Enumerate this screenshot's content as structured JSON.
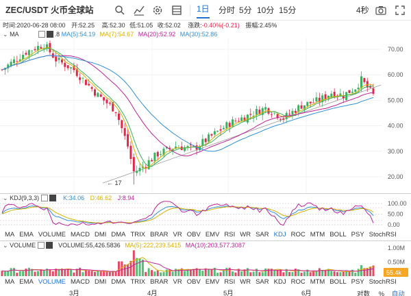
{
  "toolbar": {
    "pair": "ZEC/USDT 火币全球站",
    "intervals": [
      "1日",
      "分时",
      "5分",
      "10分",
      "15分"
    ],
    "refresh": "4秒",
    "icons": [
      "search-icon",
      "indicator-icon",
      "gear-icon",
      "layout-icon",
      "camera-icon",
      "fullscreen-icon"
    ]
  },
  "info": {
    "time_label": "时间:2020-06-28 08:00",
    "open": "开:52.25",
    "high": "高:52.30",
    "low": "低:51.05",
    "close": "收:52.02",
    "change_label": "涨跌:",
    "change": "-0.40%(-0.21)",
    "amplitude": "振幅:2.45%"
  },
  "ma_legend": {
    "name": "MA",
    "ma5_tail": ".8",
    "ma5": "MA(5):54.19",
    "ma7": "MA(7):54.67",
    "ma20": "MA(20):52.92",
    "ma30": "MA(30):52.86"
  },
  "main_axis": [
    "70.00",
    "60.00",
    "50.00",
    "40.00",
    "30.00",
    "20.00"
  ],
  "low_marker": "← 17",
  "kdj_legend": {
    "name": "KDJ(9,3,3)",
    "k": "K:34.06",
    "d": "D:46.62",
    "j": "J:8.94"
  },
  "kdj_axis": [
    "100.00",
    "50.00",
    "0.00"
  ],
  "indicators_row": [
    "MA",
    "EMA",
    "VOLUME",
    "MACD",
    "DMI",
    "DMA",
    "TRIX",
    "BRAR",
    "VR",
    "OBV",
    "EMV",
    "RSI",
    "WR",
    "SAR",
    "KDJ",
    "ROC",
    "MTM",
    "BOLL",
    "PSY",
    "StochRSI"
  ],
  "indicators_row_active_1": "KDJ",
  "indicators_row_active_2": "VOLUME",
  "vol_legend": {
    "name": "VOLUME",
    "vol": "VOLUME:55,426.5836",
    "ma5": "MA(5):222,239.5415",
    "ma10": "MA(10):203,577.3087"
  },
  "vol_axis": [
    "1.00M",
    "0.50M"
  ],
  "vol_badge": "55.4k",
  "months": [
    "3月",
    "4月",
    "5月",
    "6月"
  ],
  "bottom_right": [
    "对数",
    "%",
    "自动"
  ],
  "colors": {
    "up": "#3ab15e",
    "down": "#e0294a",
    "ma5": "#333333",
    "ma7": "#d8b000",
    "ma20": "#c0219a",
    "ma30": "#2f8fd8",
    "accent": "#1e73d2",
    "badge": "#f5a623"
  }
}
